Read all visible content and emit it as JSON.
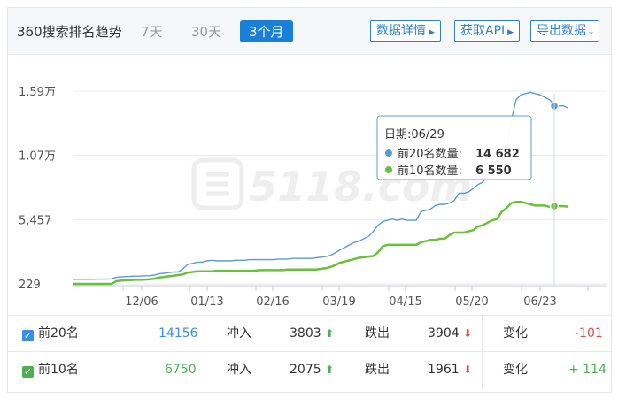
{
  "header": {
    "title": "360搜索排名趋势",
    "ranges": [
      {
        "label": "7天",
        "active": false
      },
      {
        "label": "30天",
        "active": false
      },
      {
        "label": "3个月",
        "active": true
      }
    ],
    "buttons": [
      {
        "label": "数据详情",
        "icon": "triangle-right-icon"
      },
      {
        "label": "获取API",
        "icon": "triangle-right-icon"
      },
      {
        "label": "导出数据",
        "icon": "download-icon"
      }
    ]
  },
  "watermark": "5118.com",
  "chart_data": {
    "type": "line",
    "y_tick_labels": [
      "1.59万",
      "1.07万",
      "5,457",
      "229"
    ],
    "y_tick_values": [
      15900,
      10700,
      5457,
      229
    ],
    "x_tick_labels": [
      "12/06",
      "01/13",
      "02/16",
      "03/19",
      "04/15",
      "05/20",
      "06/23"
    ],
    "series": [
      {
        "name": "前20名数量",
        "color": "#5b9bd5",
        "values": [
          600,
          600,
          600,
          600,
          600,
          620,
          620,
          620,
          640,
          760,
          800,
          820,
          850,
          860,
          870,
          890,
          900,
          940,
          1050,
          1100,
          1150,
          1200,
          1200,
          1450,
          1800,
          1900,
          2000,
          2000,
          2100,
          2150,
          2100,
          2100,
          2100,
          2100,
          2150,
          2150,
          2150,
          2200,
          2200,
          2200,
          2200,
          2200,
          2200,
          2250,
          2250,
          2250,
          2300,
          2300,
          2300,
          2300,
          2300,
          2350,
          2400,
          2450,
          2550,
          2750,
          3000,
          3200,
          3400,
          3600,
          3700,
          3900,
          4100,
          4500,
          5000,
          5300,
          5400,
          5500,
          5400,
          5500,
          5400,
          5400,
          5400,
          6100,
          6200,
          6300,
          6600,
          6700,
          6700,
          6800,
          7000,
          7600,
          7600,
          7700,
          8000,
          8300,
          8500,
          9000,
          9300,
          9800,
          10300,
          11200,
          13500,
          15200,
          15600,
          15700,
          15800,
          15700,
          15600,
          15400,
          15200,
          14800,
          14700,
          14700,
          14500
        ],
        "marker": {
          "label": "日期:06/29",
          "value": 14682
        }
      },
      {
        "name": "前10名数量",
        "color": "#67c23a",
        "values": [
          229,
          229,
          229,
          229,
          229,
          229,
          229,
          229,
          229,
          450,
          500,
          520,
          540,
          560,
          560,
          580,
          600,
          650,
          750,
          800,
          850,
          900,
          950,
          1000,
          1150,
          1200,
          1250,
          1250,
          1250,
          1250,
          1300,
          1300,
          1300,
          1300,
          1300,
          1300,
          1300,
          1300,
          1300,
          1350,
          1350,
          1350,
          1350,
          1350,
          1350,
          1400,
          1400,
          1400,
          1400,
          1400,
          1400,
          1400,
          1450,
          1500,
          1600,
          1750,
          1950,
          2050,
          2150,
          2250,
          2350,
          2400,
          2450,
          2500,
          2800,
          3300,
          3400,
          3400,
          3400,
          3400,
          3400,
          3400,
          3400,
          3600,
          3700,
          3800,
          3800,
          3900,
          3900,
          4200,
          4400,
          4400,
          4400,
          4500,
          4600,
          4900,
          5000,
          5200,
          5400,
          5500,
          6100,
          6400,
          6800,
          6900,
          6900,
          6800,
          6700,
          6600,
          6600,
          6600,
          6500,
          6500,
          6550,
          6550,
          6500
        ],
        "marker": {
          "label": "日期:06/29",
          "value": 6550
        }
      }
    ],
    "tooltip": {
      "date": "日期:06/29",
      "rows": [
        {
          "label": "前20名数量:",
          "value": "14 682",
          "color": "#5b9bd5"
        },
        {
          "label": "前10名数量:",
          "value": "6 550",
          "color": "#67c23a"
        }
      ]
    }
  },
  "table": {
    "rows": [
      {
        "check_color": "#3a8ee6",
        "name": "前20名",
        "count": "14156",
        "count_color": "#3a8ee6",
        "in_label": "冲入",
        "in_value": "3803",
        "out_label": "跌出",
        "out_value": "3904",
        "change_label": "变化",
        "change_value": "-101",
        "change_color": "#e04b4b"
      },
      {
        "check_color": "#4caf50",
        "name": "前10名",
        "count": "6750",
        "count_color": "#4caf50",
        "in_label": "冲入",
        "in_value": "2075",
        "out_label": "跌出",
        "out_value": "1961",
        "change_label": "变化",
        "change_value": "+ 114",
        "change_color": "#4caf50"
      }
    ],
    "up_arrow_color": "#4caf50",
    "down_arrow_color": "#e04b4b"
  }
}
